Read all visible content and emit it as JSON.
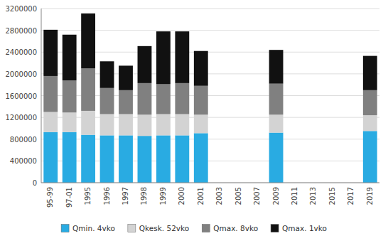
{
  "chart_data": {
    "type": "bar",
    "stacked": true,
    "categories": [
      "95-99",
      "97-01",
      "1995",
      "1996",
      "1997",
      "1998",
      "1999",
      "2000",
      "2001",
      "2003",
      "2005",
      "2007",
      "2009",
      "2011",
      "2013",
      "2015",
      "2017",
      "2019"
    ],
    "series": [
      {
        "name": "Qmin. 4vko",
        "color": "#29ABE2",
        "values": [
          930000,
          930000,
          880000,
          870000,
          870000,
          860000,
          870000,
          870000,
          910000,
          0,
          0,
          0,
          920000,
          0,
          0,
          0,
          0,
          950000
        ]
      },
      {
        "name": "Qkesk. 52vko",
        "color": "#D3D3D3",
        "values": [
          370000,
          360000,
          440000,
          390000,
          390000,
          390000,
          390000,
          390000,
          340000,
          0,
          0,
          0,
          330000,
          0,
          0,
          0,
          0,
          290000
        ]
      },
      {
        "name": "Qmax. 8vko",
        "color": "#808080",
        "values": [
          660000,
          590000,
          780000,
          480000,
          440000,
          580000,
          550000,
          570000,
          530000,
          0,
          0,
          0,
          570000,
          0,
          0,
          0,
          0,
          460000
        ]
      },
      {
        "name": "Qmax. 1vko",
        "color": "#111111",
        "values": [
          850000,
          840000,
          1010000,
          490000,
          450000,
          680000,
          970000,
          950000,
          640000,
          0,
          0,
          0,
          620000,
          0,
          0,
          0,
          0,
          630000
        ]
      }
    ],
    "ylim": [
      0,
      3200000
    ],
    "yticks": [
      0,
      400000,
      800000,
      1200000,
      1600000,
      2000000,
      2400000,
      2800000,
      3200000
    ],
    "grid": true,
    "legend": "bottom"
  }
}
